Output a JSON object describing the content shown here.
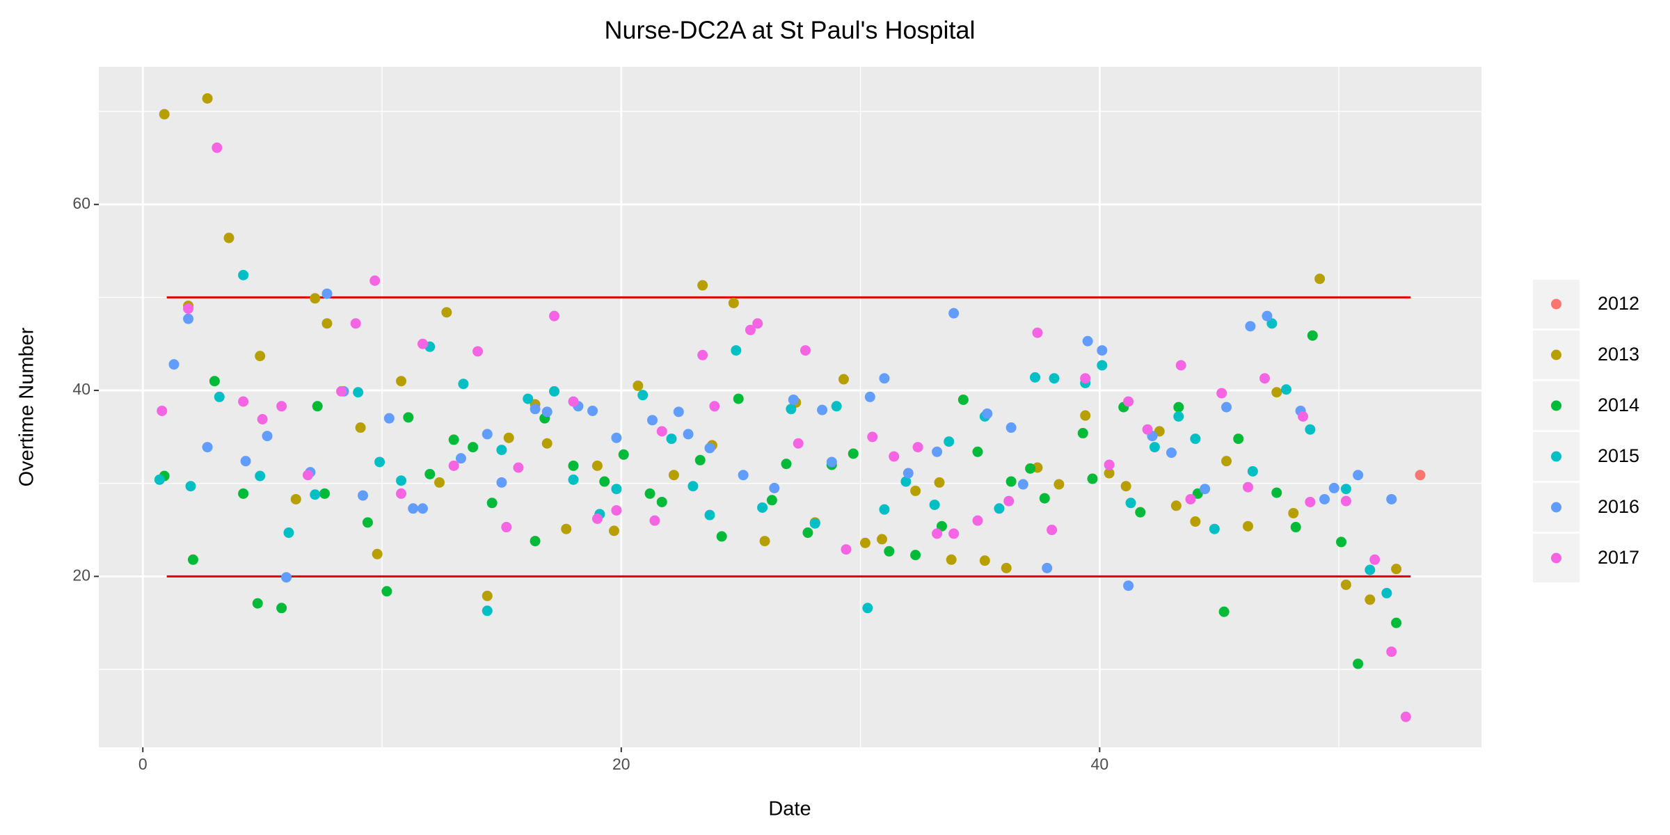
{
  "chart_data": {
    "type": "scatter",
    "title": "Nurse-DC2A at St Paul's Hospital",
    "x_label": "Date",
    "y_label": "Overtime Number",
    "xlim": [
      -1.84,
      55.96
    ],
    "ylim": [
      1.62,
      74.8
    ],
    "xticks": [
      0,
      20,
      40
    ],
    "yticks": [
      20,
      40,
      60
    ],
    "minor_xgrid": [
      10,
      30,
      50
    ],
    "minor_ygrid": [
      10,
      30,
      50,
      70
    ],
    "grid": true,
    "reference_lines": [
      {
        "y": 50,
        "x": [
          1,
          53
        ],
        "color": "#e00000"
      },
      {
        "y": 20,
        "x": [
          1,
          53
        ],
        "color": "#e00000"
      }
    ],
    "legend_position": "right",
    "series": [
      {
        "name": "2012",
        "color": "#F8766D",
        "x": [
          53.4
        ],
        "values": [
          30.9
        ]
      },
      {
        "name": "2013",
        "color": "#B79F00",
        "x": [
          0.9,
          2.7,
          1.9,
          3.6,
          4.9,
          6.4,
          7.2,
          7.7,
          9.1,
          9.8,
          10.8,
          12.4,
          12.7,
          14.4,
          15.3,
          16.4,
          16.9,
          17.7,
          19.0,
          19.7,
          20.7,
          22.2,
          23.4,
          23.8,
          24.7,
          26.0,
          27.3,
          28.1,
          29.3,
          30.2,
          30.9,
          32.3,
          33.3,
          33.8,
          35.2,
          36.1,
          37.4,
          38.3,
          39.4,
          40.4,
          41.1,
          42.5,
          43.2,
          44.0,
          45.3,
          46.2,
          47.4,
          48.1,
          49.2,
          50.3,
          51.3,
          52.4
        ],
        "values": [
          69.7,
          71.4,
          49.1,
          56.4,
          43.7,
          28.3,
          49.9,
          47.2,
          36.0,
          22.4,
          41.0,
          30.1,
          48.4,
          17.9,
          34.9,
          38.5,
          34.3,
          25.1,
          31.9,
          24.9,
          40.5,
          30.9,
          51.3,
          34.1,
          49.4,
          23.8,
          38.7,
          25.8,
          41.2,
          23.6,
          24.0,
          29.2,
          30.1,
          21.8,
          21.7,
          20.9,
          31.7,
          29.9,
          37.3,
          31.1,
          29.7,
          35.6,
          27.6,
          25.9,
          32.4,
          25.4,
          39.8,
          26.8,
          52.0,
          19.1,
          17.5,
          20.8
        ]
      },
      {
        "name": "2014",
        "color": "#00BA38",
        "x": [
          0.9,
          2.1,
          3.0,
          4.2,
          4.8,
          5.8,
          7.3,
          7.6,
          9.4,
          10.2,
          11.1,
          12.0,
          13.0,
          13.8,
          14.6,
          16.4,
          16.8,
          18.0,
          19.3,
          20.1,
          21.2,
          21.7,
          23.3,
          24.2,
          24.9,
          26.3,
          26.9,
          27.8,
          28.8,
          29.7,
          31.2,
          32.3,
          33.4,
          34.3,
          34.9,
          36.3,
          37.1,
          37.7,
          39.3,
          39.7,
          41.0,
          41.7,
          43.3,
          44.1,
          45.2,
          45.8,
          47.4,
          48.2,
          48.9,
          50.1,
          50.8,
          52.4
        ],
        "values": [
          30.8,
          21.8,
          41.0,
          28.9,
          17.1,
          16.6,
          38.3,
          28.9,
          25.8,
          18.4,
          37.1,
          31.0,
          34.7,
          33.9,
          27.9,
          23.8,
          37.0,
          31.9,
          30.2,
          33.1,
          28.9,
          28.0,
          32.5,
          24.3,
          39.1,
          28.2,
          32.1,
          24.7,
          32.0,
          33.2,
          22.7,
          22.3,
          25.4,
          39.0,
          33.4,
          30.2,
          31.6,
          28.4,
          35.4,
          30.5,
          38.2,
          26.9,
          38.2,
          28.9,
          16.2,
          34.8,
          29.0,
          25.3,
          45.9,
          23.7,
          10.6,
          15.0
        ]
      },
      {
        "name": "2015",
        "color": "#00BFC4",
        "x": [
          0.7,
          2.0,
          3.2,
          4.2,
          4.9,
          6.1,
          7.2,
          9.0,
          9.9,
          10.8,
          12.0,
          13.4,
          14.4,
          15.0,
          16.1,
          17.2,
          18.0,
          19.1,
          19.8,
          20.9,
          22.1,
          23.0,
          23.7,
          24.8,
          25.9,
          27.1,
          28.1,
          29.0,
          30.3,
          31.0,
          31.9,
          33.1,
          33.7,
          35.2,
          35.8,
          37.3,
          38.1,
          39.4,
          40.1,
          41.3,
          42.3,
          43.3,
          44.0,
          44.8,
          46.4,
          47.2,
          47.8,
          48.8,
          50.3,
          51.3,
          52.0
        ],
        "values": [
          30.4,
          29.7,
          39.3,
          52.4,
          30.8,
          24.7,
          28.8,
          39.8,
          32.3,
          30.3,
          44.7,
          40.7,
          16.3,
          33.6,
          39.1,
          39.9,
          30.4,
          26.7,
          29.4,
          39.5,
          34.8,
          29.7,
          26.6,
          44.3,
          27.4,
          38.0,
          25.7,
          38.3,
          16.6,
          27.2,
          30.2,
          27.7,
          34.5,
          37.2,
          27.3,
          41.4,
          41.3,
          40.8,
          42.7,
          27.9,
          33.9,
          37.2,
          34.8,
          25.1,
          31.3,
          47.2,
          40.1,
          35.8,
          29.4,
          20.7,
          18.2
        ]
      },
      {
        "name": "2016",
        "color": "#619CFF",
        "x": [
          1.3,
          1.9,
          2.7,
          4.3,
          5.2,
          6.0,
          7.0,
          7.7,
          8.4,
          9.2,
          10.3,
          11.3,
          11.7,
          13.3,
          14.4,
          15.0,
          16.4,
          16.9,
          18.2,
          18.8,
          19.8,
          21.3,
          22.4,
          22.8,
          23.7,
          25.1,
          26.4,
          27.2,
          28.4,
          28.8,
          30.4,
          31.0,
          32.0,
          33.2,
          33.9,
          35.3,
          36.3,
          36.8,
          37.8,
          39.5,
          40.1,
          41.2,
          42.2,
          43.0,
          44.4,
          45.3,
          46.3,
          47.0,
          48.4,
          49.4,
          49.8,
          50.8,
          52.2
        ],
        "values": [
          42.8,
          47.7,
          33.9,
          32.4,
          35.1,
          19.9,
          31.2,
          50.4,
          39.9,
          28.7,
          37.0,
          27.3,
          27.3,
          32.7,
          35.3,
          30.1,
          38.0,
          37.7,
          38.3,
          37.8,
          34.9,
          36.8,
          37.7,
          35.3,
          33.8,
          30.9,
          29.5,
          39.0,
          37.9,
          32.3,
          39.3,
          41.3,
          31.1,
          33.4,
          48.3,
          37.5,
          36.0,
          29.9,
          20.9,
          45.3,
          44.3,
          19.0,
          35.1,
          33.3,
          29.4,
          38.2,
          46.9,
          48.0,
          37.8,
          28.3,
          29.5,
          30.9,
          28.3
        ]
      },
      {
        "name": "2017",
        "color": "#F564E3",
        "x": [
          0.8,
          1.9,
          3.1,
          4.2,
          5.0,
          5.8,
          6.9,
          8.3,
          8.9,
          9.7,
          10.8,
          11.7,
          13.0,
          14.0,
          15.2,
          15.7,
          17.2,
          18.0,
          19.0,
          19.8,
          21.4,
          21.7,
          23.4,
          23.9,
          25.4,
          25.7,
          27.4,
          27.7,
          29.4,
          30.5,
          31.4,
          32.4,
          33.2,
          33.9,
          34.9,
          36.2,
          37.4,
          38.0,
          39.4,
          40.4,
          41.2,
          42.0,
          43.4,
          43.8,
          45.1,
          46.2,
          46.9,
          48.5,
          48.8,
          50.3,
          51.5,
          52.2,
          52.8
        ],
        "values": [
          37.8,
          48.8,
          66.1,
          38.8,
          36.9,
          38.3,
          30.9,
          39.9,
          47.2,
          51.8,
          28.9,
          45.0,
          31.9,
          44.2,
          25.3,
          31.7,
          48.0,
          38.8,
          26.2,
          27.1,
          26.0,
          35.6,
          43.8,
          38.3,
          46.5,
          47.2,
          34.3,
          44.3,
          22.9,
          35.0,
          32.9,
          33.9,
          24.6,
          24.6,
          26.0,
          28.1,
          46.2,
          25.0,
          41.3,
          32.0,
          38.8,
          35.8,
          42.7,
          28.3,
          39.7,
          29.6,
          41.3,
          37.2,
          28.0,
          28.1,
          21.8,
          11.9,
          4.9
        ]
      }
    ]
  }
}
